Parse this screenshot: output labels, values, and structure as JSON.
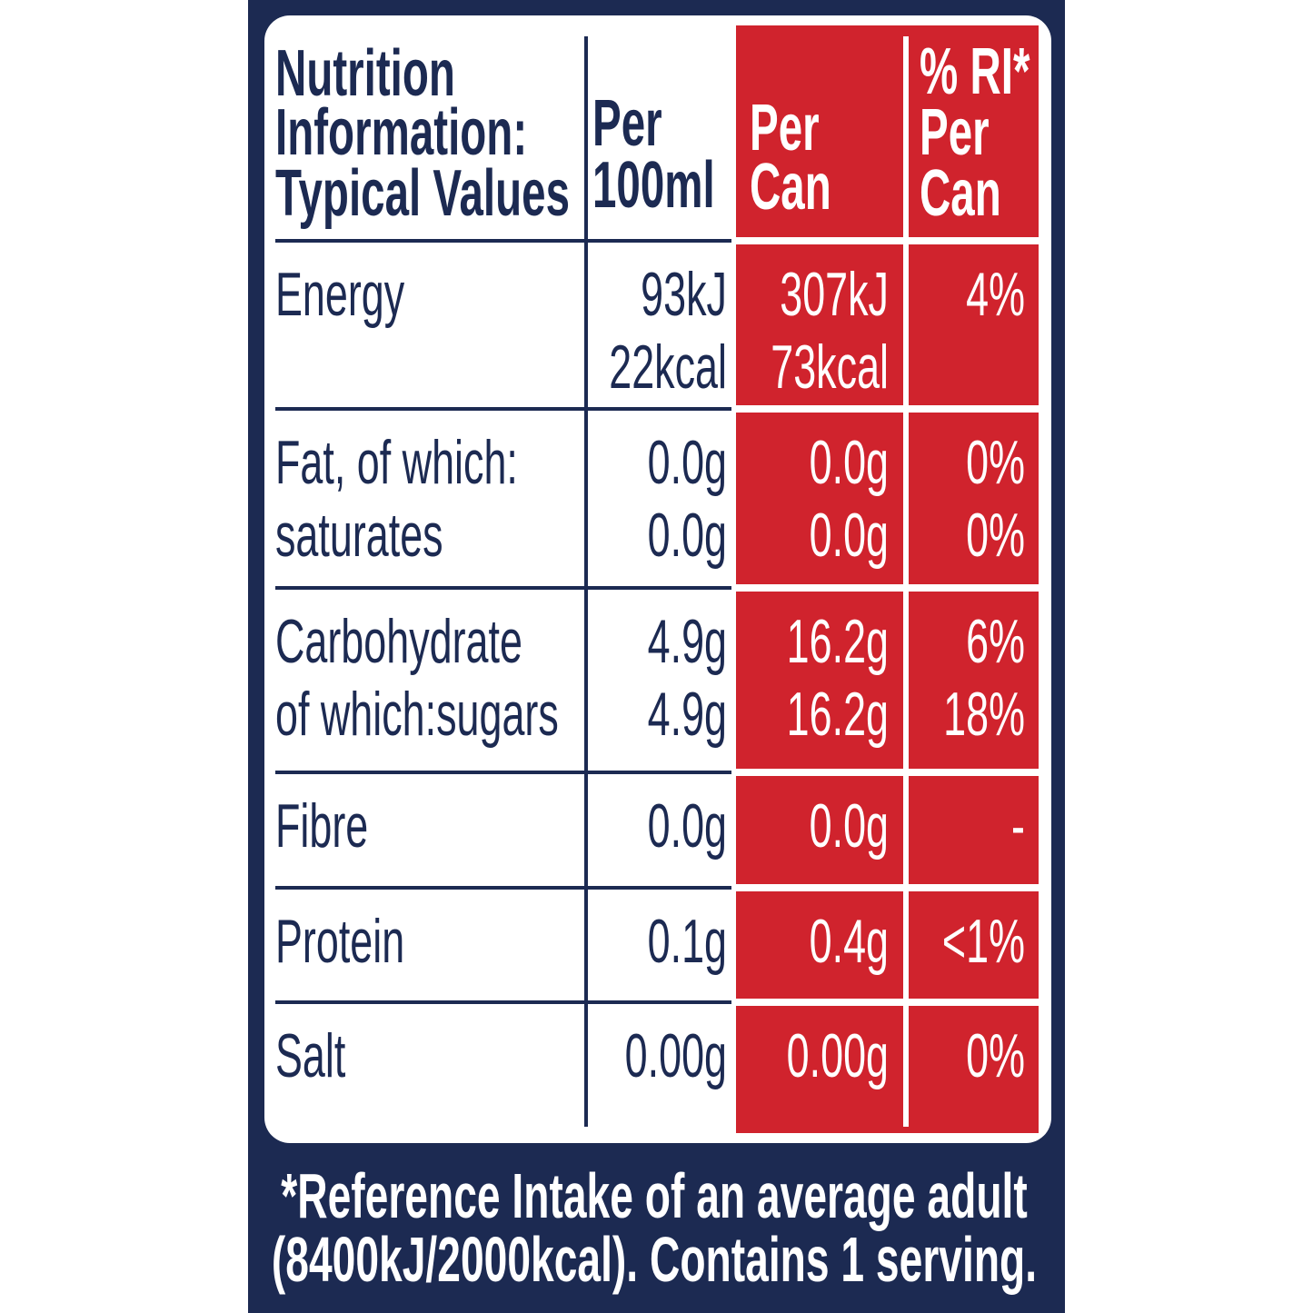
{
  "table": {
    "columns": [
      [
        "Nutrition",
        "Information:",
        "Typical Values"
      ],
      [
        "Per",
        "100ml"
      ],
      [
        "Per",
        "Can"
      ],
      [
        "% RI*",
        "Per",
        "Can"
      ]
    ],
    "rows": [
      [
        [
          "Energy"
        ],
        [
          "93kJ",
          "22kcal"
        ],
        [
          "307kJ",
          "73kcal"
        ],
        [
          "4%"
        ]
      ],
      [
        [
          "Fat, of which:",
          "saturates"
        ],
        [
          "0.0g",
          "0.0g"
        ],
        [
          "0.0g",
          "0.0g"
        ],
        [
          "0%",
          "0%"
        ]
      ],
      [
        [
          "Carbohydrate",
          "of which:sugars"
        ],
        [
          "4.9g",
          "4.9g"
        ],
        [
          "16.2g",
          "16.2g"
        ],
        [
          "6%",
          "18%"
        ]
      ],
      [
        [
          "Fibre"
        ],
        [
          "0.0g"
        ],
        [
          "0.0g"
        ],
        [
          "-"
        ]
      ],
      [
        [
          "Protein"
        ],
        [
          "0.1g"
        ],
        [
          "0.4g"
        ],
        [
          "<1%"
        ]
      ],
      [
        [
          "Salt"
        ],
        [
          "0.00g"
        ],
        [
          "0.00g"
        ],
        [
          "0%"
        ]
      ]
    ]
  },
  "footnote": [
    "*Reference Intake of an average adult",
    "(8400kJ/2000kcal). Contains 1 serving."
  ]
}
